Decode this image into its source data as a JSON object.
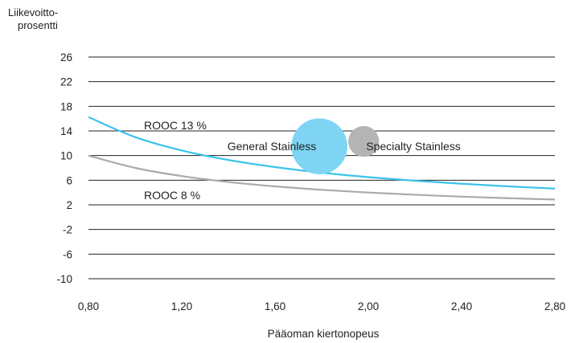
{
  "colors": {
    "rooc13": "#3cc3ea",
    "rooc8": "#aaaaaa",
    "bubble_general": "#7fd4f4",
    "bubble_specialty": "#b4b4b4",
    "grid": "#222222"
  },
  "chart_data": {
    "type": "line",
    "title": "",
    "ylabel_lines": [
      "Liikevoitto-",
      "prosentti"
    ],
    "xlabel": "Pääoman kiertonopeus",
    "xlim": [
      0.8,
      2.8
    ],
    "ylim": [
      -10,
      26
    ],
    "x_ticks": [
      "0,80",
      "1,20",
      "1,60",
      "2,00",
      "2,40",
      "2,80"
    ],
    "x_tick_values": [
      0.8,
      1.2,
      1.6,
      2.0,
      2.4,
      2.8
    ],
    "y_ticks": [
      "26",
      "22",
      "18",
      "14",
      "10",
      "6",
      "2",
      "-2",
      "-6",
      "-10"
    ],
    "y_tick_values": [
      26,
      22,
      18,
      14,
      10,
      6,
      2,
      -2,
      -6,
      -10
    ],
    "grid": true,
    "series": [
      {
        "name": "ROOC 13 %",
        "x": [
          0.8,
          1.0,
          1.2,
          1.4,
          1.6,
          1.8,
          2.0,
          2.2,
          2.4,
          2.6,
          2.8
        ],
        "values": [
          16.25,
          13.0,
          10.83,
          9.29,
          8.13,
          7.22,
          6.5,
          5.91,
          5.42,
          5.0,
          4.64
        ]
      },
      {
        "name": "ROOC 8 %",
        "x": [
          0.8,
          1.0,
          1.2,
          1.4,
          1.6,
          1.8,
          2.0,
          2.2,
          2.4,
          2.6,
          2.8
        ],
        "values": [
          10.0,
          8.0,
          6.67,
          5.71,
          5.0,
          4.44,
          4.0,
          3.64,
          3.33,
          3.08,
          2.86
        ]
      }
    ],
    "bubbles": [
      {
        "name": "General Stainless",
        "x": 1.79,
        "y": 11.5,
        "r_data": 0.12
      },
      {
        "name": "Specialty Stainless",
        "x": 1.98,
        "y": 12.3,
        "r_data": 0.066
      }
    ]
  }
}
